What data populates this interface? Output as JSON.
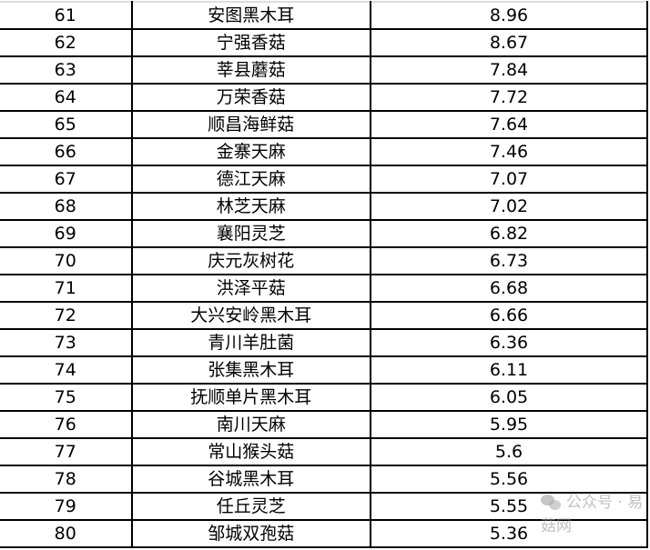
{
  "rows": [
    {
      "rank": "61",
      "name": "安图黑木耳",
      "value": "8.96"
    },
    {
      "rank": "62",
      "name": "宁强香菇",
      "value": "8.67"
    },
    {
      "rank": "63",
      "name": "莘县蘑菇",
      "value": "7.84"
    },
    {
      "rank": "64",
      "name": "万荣香菇",
      "value": "7.72"
    },
    {
      "rank": "65",
      "name": "顺昌海鲜菇",
      "value": "7.64"
    },
    {
      "rank": "66",
      "name": "金寨天麻",
      "value": "7.46"
    },
    {
      "rank": "67",
      "name": "德江天麻",
      "value": "7.07"
    },
    {
      "rank": "68",
      "name": "林芝天麻",
      "value": "7.02"
    },
    {
      "rank": "69",
      "name": "襄阳灵芝",
      "value": "6.82"
    },
    {
      "rank": "70",
      "name": "庆元灰树花",
      "value": "6.73"
    },
    {
      "rank": "71",
      "name": "洪泽平菇",
      "value": "6.68"
    },
    {
      "rank": "72",
      "name": "大兴安岭黑木耳",
      "value": "6.66"
    },
    {
      "rank": "73",
      "name": "青川羊肚菌",
      "value": "6.36"
    },
    {
      "rank": "74",
      "name": "张集黑木耳",
      "value": "6.11"
    },
    {
      "rank": "75",
      "name": "抚顺单片黑木耳",
      "value": "6.05"
    },
    {
      "rank": "76",
      "name": "南川天麻",
      "value": "5.95"
    },
    {
      "rank": "77",
      "name": "常山猴头菇",
      "value": "5.6"
    },
    {
      "rank": "78",
      "name": "谷城黑木耳",
      "value": "5.56"
    },
    {
      "rank": "79",
      "name": "任丘灵芝",
      "value": "5.55"
    },
    {
      "rank": "80",
      "name": "邹城双孢菇",
      "value": "5.36"
    }
  ],
  "watermark": {
    "text": "公众号 · 易菇网",
    "icon": "wechat-icon"
  }
}
